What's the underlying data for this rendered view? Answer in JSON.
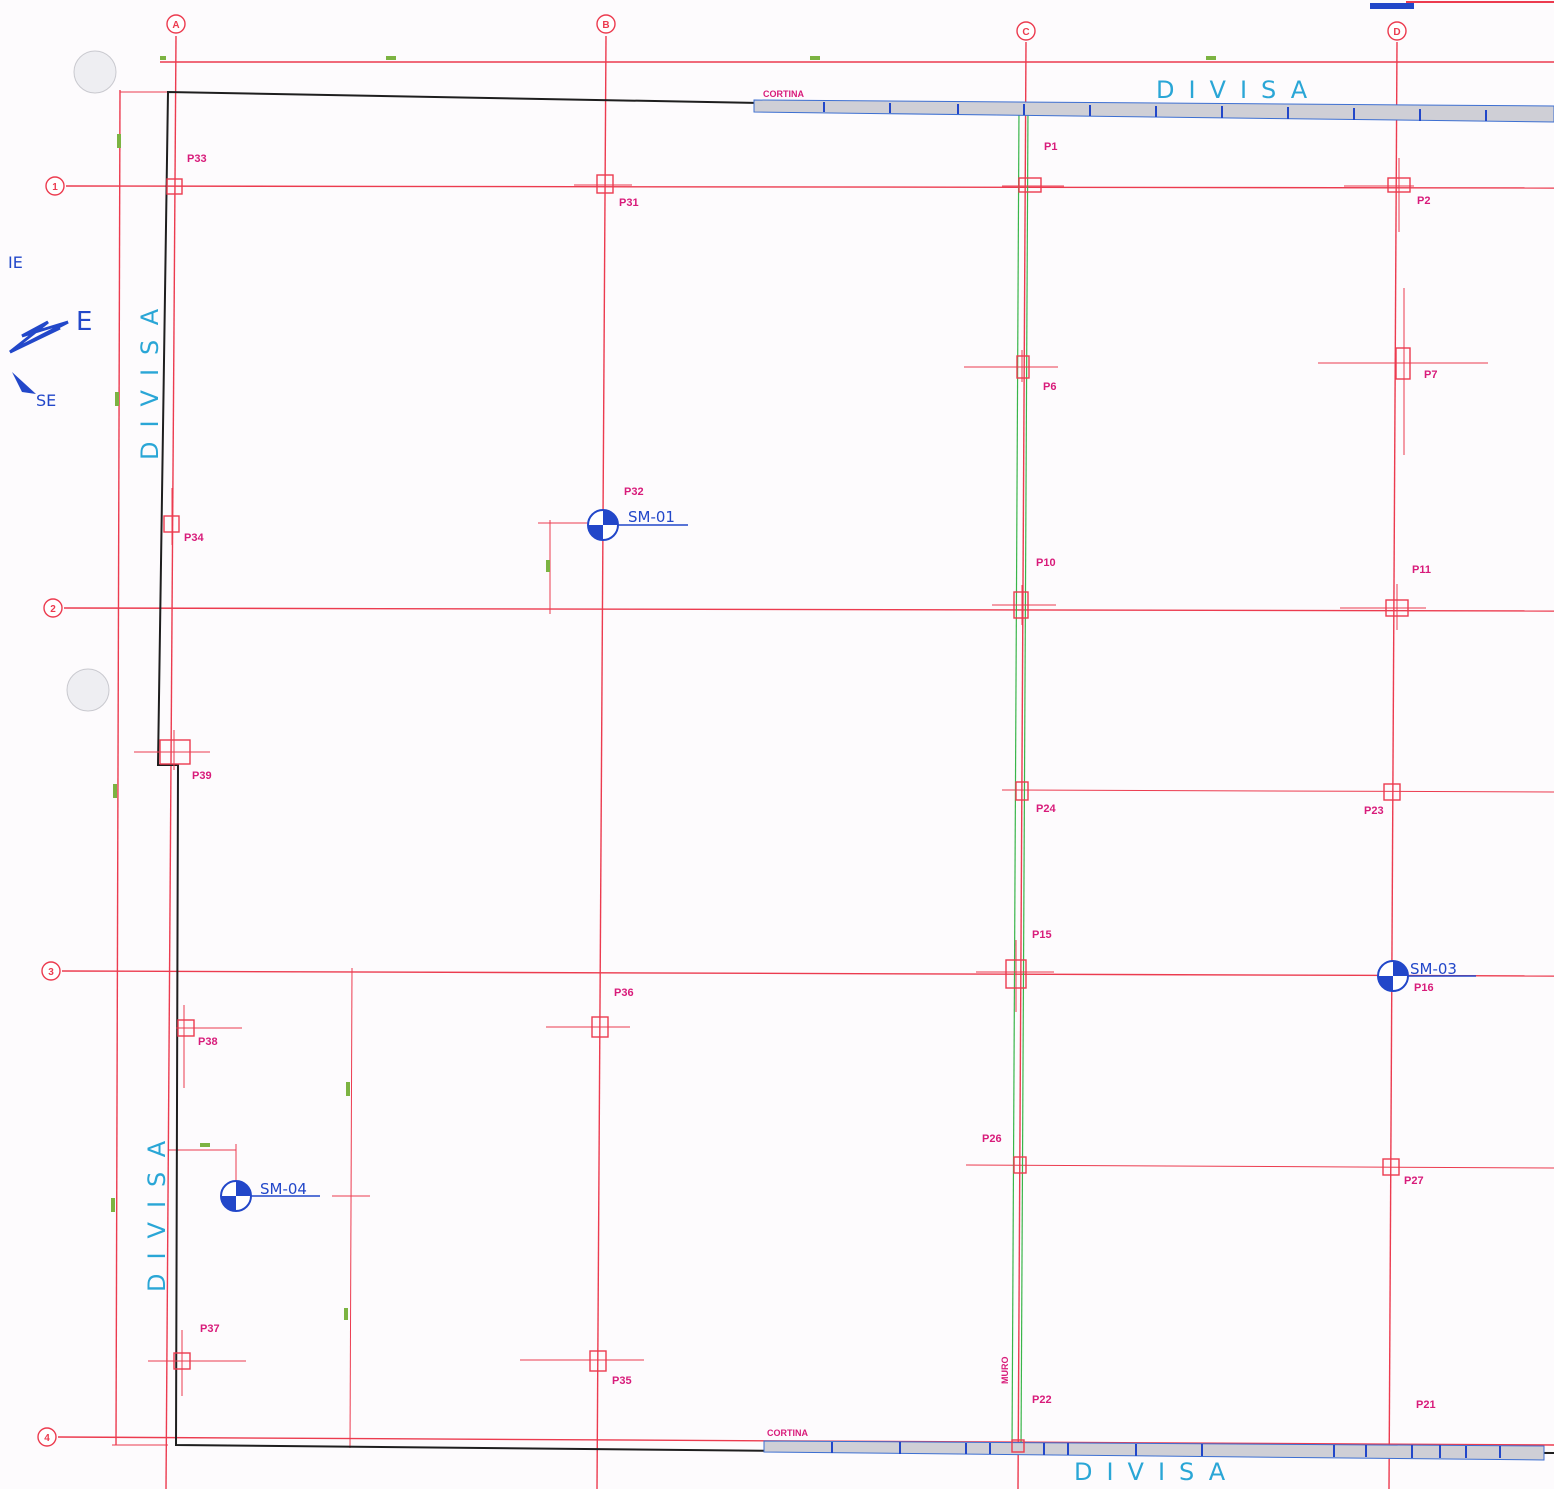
{
  "grid_axes": {
    "columns": [
      "A",
      "B",
      "C",
      "D"
    ],
    "rows": [
      "1",
      "2",
      "3",
      "4"
    ]
  },
  "boundary_labels": {
    "top": "DIVISA",
    "bottom": "DIVISA",
    "left_upper": "DIVISA",
    "left_lower": "DIVISA"
  },
  "curtain_labels": {
    "top": "CORTINA",
    "bottom": "CORTINA"
  },
  "wall_label": "MURO",
  "pillars": [
    "P1",
    "P2",
    "P6",
    "P7",
    "P10",
    "P11",
    "P15",
    "P16",
    "P21",
    "P22",
    "P23",
    "P24",
    "P26",
    "P27",
    "P31",
    "P32",
    "P33",
    "P34",
    "P35",
    "P36",
    "P37",
    "P38",
    "P39"
  ],
  "soundings": {
    "sm01": "SM-01",
    "sm03": "SM-03",
    "sm04": "SM-04"
  },
  "compass": {
    "ne": "IE",
    "e": "E",
    "se": "SE"
  },
  "colors": {
    "grid": "#ec3b4f",
    "outline": "#1e1e1e",
    "divisa": "#2aa6d6",
    "sounding": "#2247c9",
    "pillar_label": "#d81b7a",
    "wall": "#39b54a"
  }
}
